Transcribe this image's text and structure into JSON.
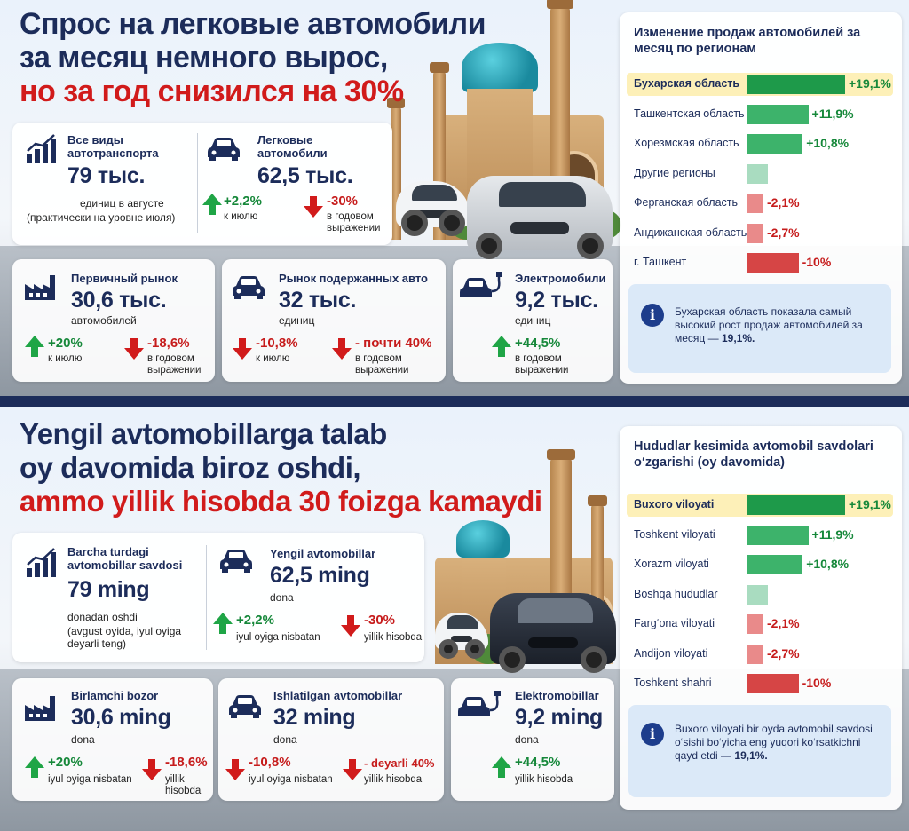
{
  "top": {
    "headline": {
      "line1": "Спрос на легковые автомобили",
      "line2": "за месяц немного вырос,",
      "line3": "но за год снизился на 30%"
    },
    "all_transport": {
      "title": "Все виды автотранспорта",
      "value": "79 тыс.",
      "sub1": "единиц в августе",
      "sub2": "(практически на уровне июля)",
      "icon": "bar-chart-icon"
    },
    "passenger": {
      "title": "Легковые автомобили",
      "value": "62,5 тыс.",
      "up_value": "+2,2%",
      "up_label": "к июлю",
      "down_value": "-30%",
      "down_label": "в годовом выражении",
      "icon": "car-icon"
    },
    "primary": {
      "title": "Первичный рынок",
      "value": "30,6 тыс.",
      "unit": "автомобилей",
      "up_value": "+20%",
      "up_label": "к июлю",
      "down_value": "-18,6%",
      "down_label": "в годовом выражении",
      "icon": "factory-icon"
    },
    "used": {
      "title": "Рынок подержанных авто",
      "value": "32 тыс.",
      "unit": "единиц",
      "down1_value": "-10,8%",
      "down1_label": "к июлю",
      "down2_value": "- почти 40%",
      "down2_label": "в годовом выражении",
      "icon": "car-icon"
    },
    "ev": {
      "title": "Электромобили",
      "value": "9,2 тыс.",
      "unit": "единиц",
      "up_value": "+44,5%",
      "up_label": "в годовом выражении",
      "icon": "electric-car-icon"
    },
    "chart": {
      "title": "Изменение продаж автомобилей за месяц по регионам",
      "note": "Бухарская область показала самый высокий рост продаж автомобилей за месяц —",
      "note_value": "19,1%."
    }
  },
  "bottom": {
    "headline": {
      "line1": "Yengil avtomobillarga talab",
      "line2": "oy davomida biroz oshdi,",
      "line3": "ammo yillik hisobda 30 foizga kamaydi"
    },
    "all_transport": {
      "title": "Barcha turdagi avtomobillar savdosi",
      "value": "79 ming",
      "sub1": "donadan oshdi",
      "sub2": "(avgust oyida, iyul oyiga deyarli teng)",
      "icon": "bar-chart-icon"
    },
    "passenger": {
      "title": "Yengil avtomobillar",
      "value": "62,5 ming",
      "unit": "dona",
      "up_value": "+2,2%",
      "up_label": "iyul oyiga nisbatan",
      "down_value": "-30%",
      "down_label": "yillik hisobda",
      "icon": "car-icon"
    },
    "primary": {
      "title": "Birlamchi bozor",
      "value": "30,6 ming",
      "unit": "dona",
      "up_value": "+20%",
      "up_label": "iyul oyiga nisbatan",
      "down_value": "-18,6%",
      "down_label": "yillik hisobda",
      "icon": "factory-icon"
    },
    "used": {
      "title": "Ishlatilgan avtomobillar",
      "value": "32 ming",
      "unit": "dona",
      "down1_value": "-10,8%",
      "down1_label": "iyul oyiga nisbatan",
      "down2_value": "- deyarli 40%",
      "down2_label": "yillik hisobda",
      "icon": "car-icon"
    },
    "ev": {
      "title": "Elektromobillar",
      "value": "9,2 ming",
      "unit": "dona",
      "up_value": "+44,5%",
      "up_label": "yillik hisobda",
      "icon": "electric-car-icon"
    },
    "chart": {
      "title": "Hududlar kesimida avtomobil savdolari o‘zgarishi (oy davomida)",
      "note": "Buxoro viloyati bir oyda avtomobil savdosi o‘sishi bo‘yicha eng yuqori ko‘rsatkichni qayd etdi —",
      "note_value": "19,1%."
    }
  },
  "chart_data": [
    {
      "type": "bar",
      "orientation": "horizontal",
      "title": "Изменение продаж автомобилей за месяц по регионам",
      "categories": [
        "Бухарская область",
        "Ташкентская область",
        "Хорезмская область",
        "Другие регионы",
        "Ферганская область",
        "Андижанская область",
        "г. Ташкент"
      ],
      "values": [
        19.1,
        11.9,
        10.8,
        4,
        -2.1,
        -2.7,
        -10
      ],
      "labels": [
        "+19,1%",
        "+11,9%",
        "+10,8%",
        "",
        "-2,1%",
        "-2,7%",
        "-10%"
      ],
      "unit": "%",
      "highlight": "Бухарская область",
      "colors": {
        "positive_strong": "#1e9a4a",
        "positive": "#3db36b",
        "neutral": "#a9dcc0",
        "negative": "#e98a8a",
        "negative_strong": "#d64545"
      }
    },
    {
      "type": "bar",
      "orientation": "horizontal",
      "title": "Hududlar kesimida avtomobil savdolari o‘zgarishi (oy davomida)",
      "categories": [
        "Buxoro viloyati",
        "Toshkent viloyati",
        "Xorazm viloyati",
        "Boshqa hududlar",
        "Farg‘ona viloyati",
        "Andijon viloyati",
        "Toshkent shahri"
      ],
      "values": [
        19.1,
        11.9,
        10.8,
        4,
        -2.1,
        -2.7,
        -10
      ],
      "labels": [
        "+19,1%",
        "+11,9%",
        "+10,8%",
        "",
        "-2,1%",
        "-2,7%",
        "-10%"
      ],
      "unit": "%",
      "highlight": "Buxoro viloyati",
      "colors": {
        "positive_strong": "#1e9a4a",
        "positive": "#3db36b",
        "neutral": "#a9dcc0",
        "negative": "#e98a8a",
        "negative_strong": "#d64545"
      }
    }
  ]
}
